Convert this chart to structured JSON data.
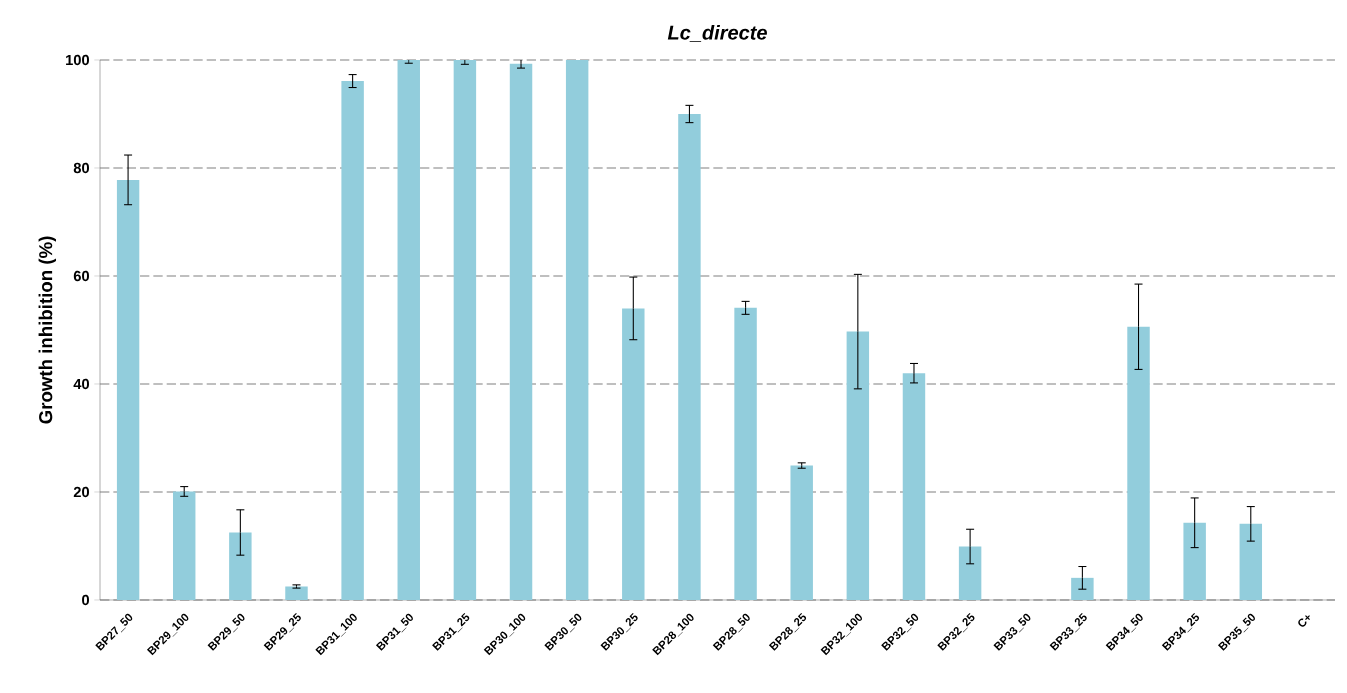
{
  "chart_data": {
    "type": "bar",
    "title": "Lc_directe",
    "ylabel": "Growth inhibition (%)",
    "categories": [
      "BP27_50",
      "BP29_100",
      "BP29_50",
      "BP29_25",
      "BP31_100",
      "BP31_50",
      "BP31_25",
      "BP30_100",
      "BP30_50",
      "BP30_25",
      "BP28_100",
      "BP28_50",
      "BP28_25",
      "BP32_100",
      "BP32_50",
      "BP32_25",
      "BP33_50",
      "BP33_25",
      "BP34_50",
      "BP34_25",
      "BP35_50",
      "C+"
    ],
    "values": [
      77.8,
      20.1,
      12.5,
      2.5,
      96.1,
      100,
      100,
      99.3,
      100,
      54.0,
      90.0,
      54.1,
      24.9,
      49.7,
      42.0,
      9.9,
      0,
      4.1,
      50.6,
      14.3,
      14.1,
      0
    ],
    "errors": [
      4.6,
      0.9,
      4.2,
      0.3,
      1.2,
      0.6,
      0.8,
      0.8,
      null,
      5.8,
      1.6,
      1.2,
      0.5,
      10.6,
      1.8,
      3.2,
      null,
      2.1,
      7.9,
      4.6,
      3.2,
      null
    ],
    "color": "#92cddc",
    "ylim": [
      0,
      100
    ],
    "yticks": [
      0,
      20,
      40,
      60,
      80,
      100
    ],
    "grid": "y"
  }
}
